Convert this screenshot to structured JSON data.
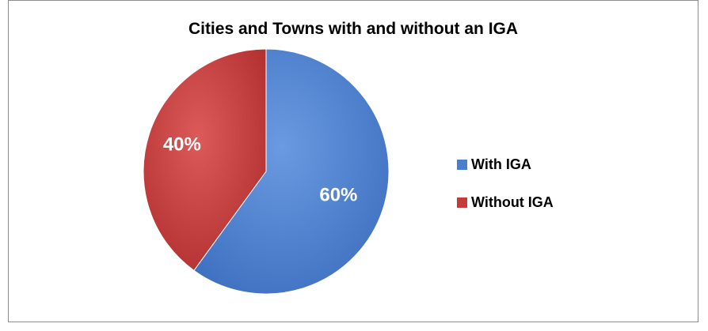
{
  "chart_data": {
    "type": "pie",
    "title": "Cities and Towns with and without an IGA",
    "slices": [
      {
        "name": "With IGA",
        "value": 60,
        "label": "60%",
        "color": "#4a7fd0"
      },
      {
        "name": "Without IGA",
        "value": 40,
        "label": "40%",
        "color": "#c73a3a"
      }
    ],
    "start_angle_deg": 0,
    "direction": "clockwise",
    "legend_position": "right"
  }
}
